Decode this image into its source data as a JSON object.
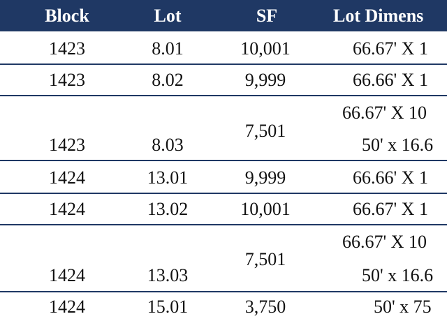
{
  "table": {
    "header": [
      "Block",
      "Lot",
      "SF",
      "Lot Dimens"
    ],
    "rows": [
      {
        "block": "1423",
        "lot": "8.01",
        "sf": "10,001",
        "dims": [
          "66.67' X 1"
        ]
      },
      {
        "block": "1423",
        "lot": "8.02",
        "sf": "9,999",
        "dims": [
          "66.66' X 1"
        ]
      },
      {
        "block": "1423",
        "lot": "8.03",
        "sf": "7,501",
        "dims": [
          "66.67' X 10",
          "50' x 16.6"
        ]
      },
      {
        "block": "1424",
        "lot": "13.01",
        "sf": "9,999",
        "dims": [
          "66.66' X 1"
        ]
      },
      {
        "block": "1424",
        "lot": "13.02",
        "sf": "10,001",
        "dims": [
          "66.67' X 1"
        ]
      },
      {
        "block": "1424",
        "lot": "13.03",
        "sf": "7,501",
        "dims": [
          "66.67' X 10",
          "50' x 16.6"
        ]
      },
      {
        "block": "1424",
        "lot": "15.01",
        "sf": "3,750",
        "dims": [
          "50' x 75"
        ]
      }
    ]
  }
}
